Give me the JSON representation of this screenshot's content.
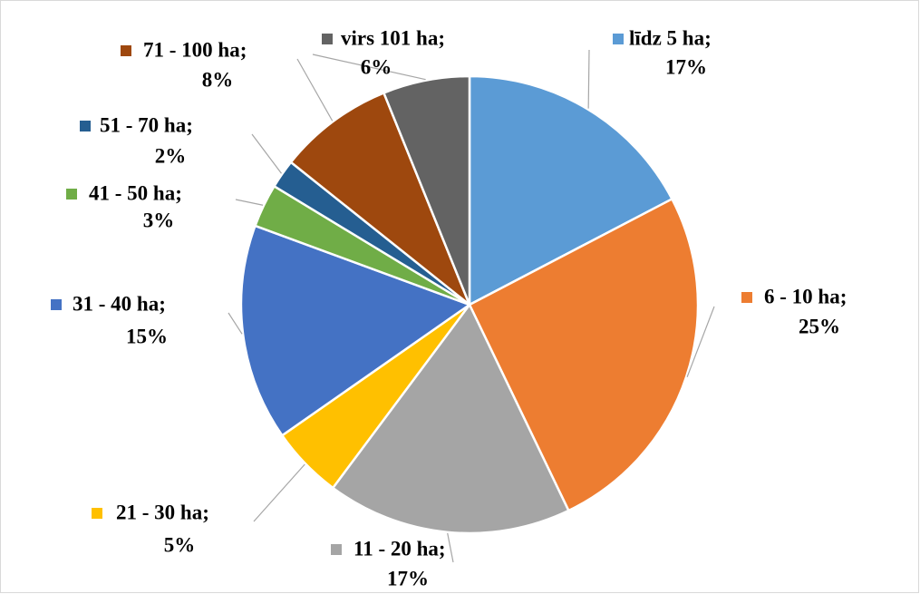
{
  "chart_data": {
    "type": "pie",
    "categories": [
      "līdz 5 ha;",
      "6 - 10 ha;",
      "11 - 20 ha;",
      "21 - 30 ha;",
      "31 - 40 ha;",
      "41 - 50 ha;",
      "51 - 70 ha;",
      "71 - 100 ha;",
      "virs 101 ha;"
    ],
    "values": [
      17,
      25,
      17,
      5,
      15,
      3,
      2,
      8,
      6
    ],
    "value_labels": [
      "17%",
      "25%",
      "17%",
      "5%",
      "15%",
      "3%",
      "2%",
      "8%",
      "6%"
    ],
    "colors": [
      "#5b9bd5",
      "#ed7d31",
      "#a5a5a5",
      "#ffc000",
      "#4472c4",
      "#70ad47",
      "#255e91",
      "#9e480e",
      "#636363"
    ]
  }
}
